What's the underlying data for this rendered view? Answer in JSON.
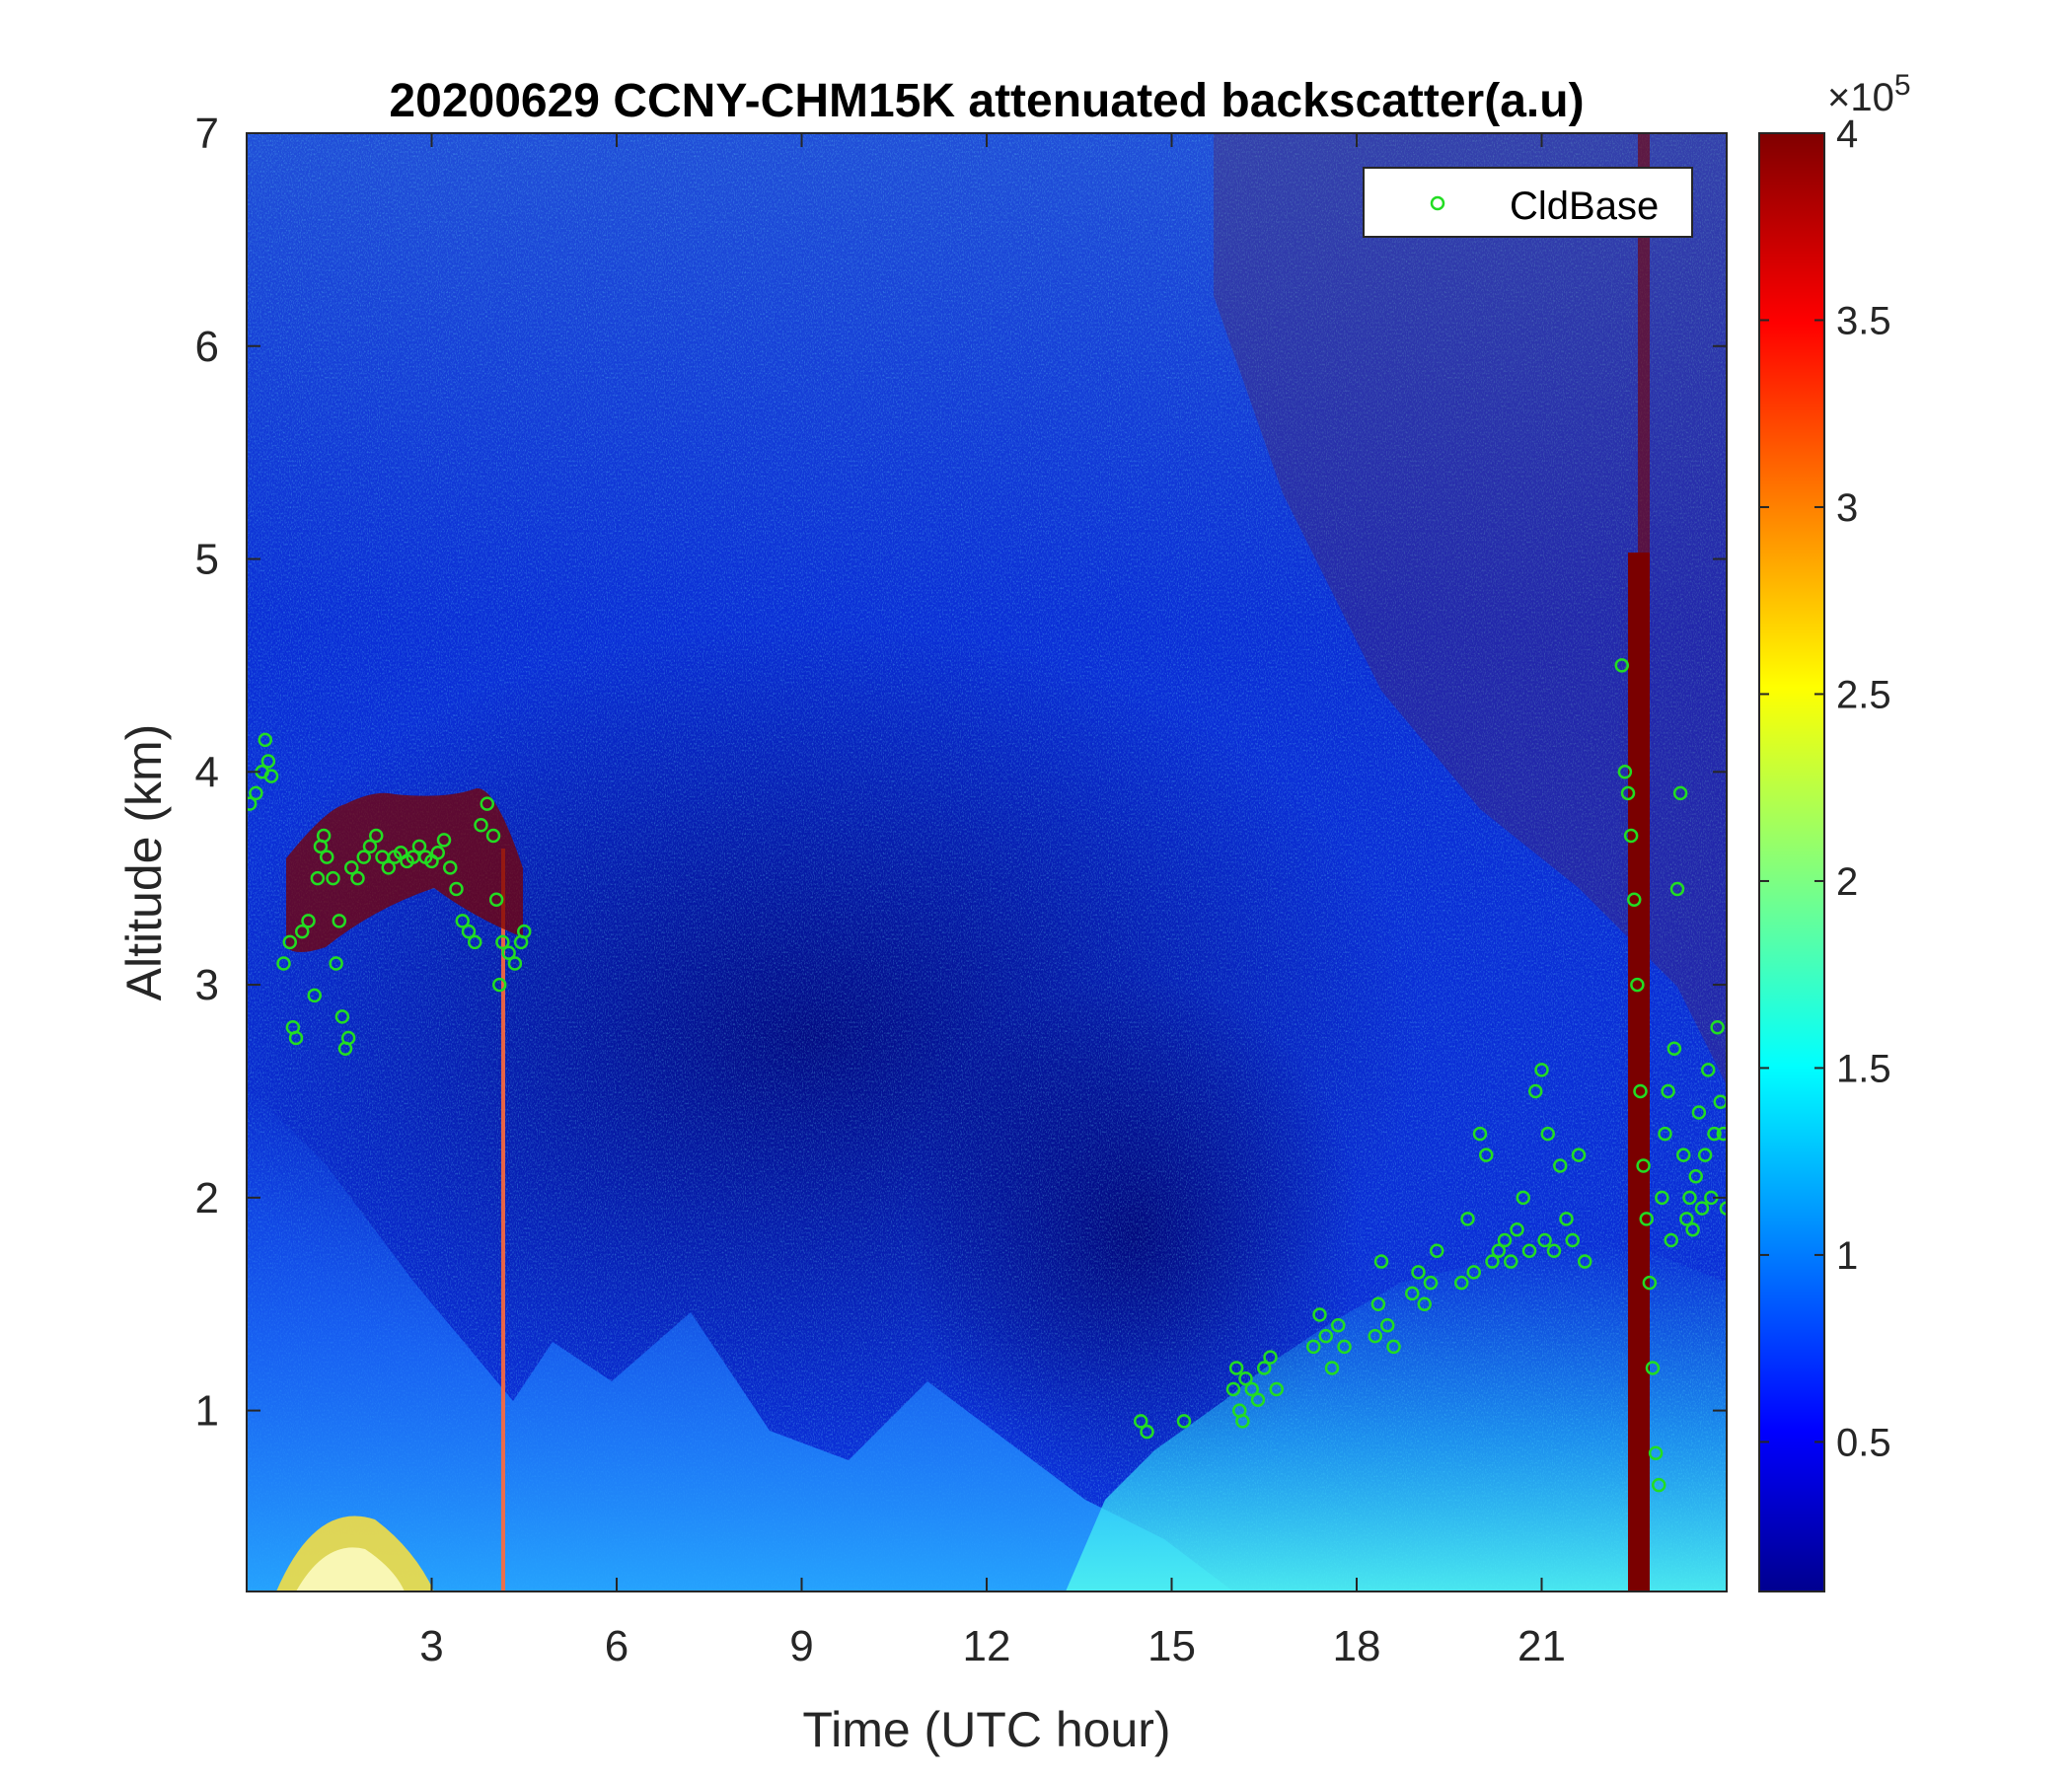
{
  "chart_data": {
    "type": "heatmap",
    "title": "20200629 CCNY-CHM15K attenuated backscatter(a.u)",
    "xlabel": "Time (UTC hour)",
    "ylabel": "Altitude (km)",
    "xlim": [
      0,
      24
    ],
    "ylim": [
      0.15,
      7
    ],
    "xticks": [
      3,
      6,
      9,
      12,
      15,
      18,
      21
    ],
    "yticks": [
      1,
      2,
      3,
      4,
      5,
      6,
      7
    ],
    "colorbar": {
      "min": 0.1,
      "max": 4,
      "ticks": [
        0.5,
        1,
        1.5,
        2,
        2.5,
        3,
        3.5,
        4
      ],
      "multiplier_label": "×10",
      "multiplier_exponent": "5",
      "colormap": "jet"
    },
    "legend": {
      "placement": "top-right",
      "entries": [
        "CldBase"
      ]
    },
    "grid": false,
    "series": [
      {
        "name": "CldBase",
        "marker": "circle",
        "color": "#22dd22",
        "points": [
          [
            0.05,
            3.85
          ],
          [
            0.15,
            3.9
          ],
          [
            0.25,
            4.0
          ],
          [
            0.3,
            4.15
          ],
          [
            0.35,
            4.05
          ],
          [
            0.4,
            3.98
          ],
          [
            0.6,
            3.1
          ],
          [
            0.7,
            3.2
          ],
          [
            0.75,
            2.8
          ],
          [
            0.8,
            2.75
          ],
          [
            0.9,
            3.25
          ],
          [
            1.0,
            3.3
          ],
          [
            1.1,
            2.95
          ],
          [
            1.15,
            3.5
          ],
          [
            1.2,
            3.65
          ],
          [
            1.25,
            3.7
          ],
          [
            1.3,
            3.6
          ],
          [
            1.4,
            3.5
          ],
          [
            1.45,
            3.1
          ],
          [
            1.5,
            3.3
          ],
          [
            1.55,
            2.85
          ],
          [
            1.6,
            2.7
          ],
          [
            1.65,
            2.75
          ],
          [
            1.7,
            3.55
          ],
          [
            1.8,
            3.5
          ],
          [
            1.9,
            3.6
          ],
          [
            2.0,
            3.65
          ],
          [
            2.1,
            3.7
          ],
          [
            2.2,
            3.6
          ],
          [
            2.3,
            3.55
          ],
          [
            2.4,
            3.6
          ],
          [
            2.5,
            3.62
          ],
          [
            2.6,
            3.58
          ],
          [
            2.7,
            3.6
          ],
          [
            2.8,
            3.65
          ],
          [
            2.9,
            3.6
          ],
          [
            3.0,
            3.58
          ],
          [
            3.1,
            3.62
          ],
          [
            3.2,
            3.68
          ],
          [
            3.3,
            3.55
          ],
          [
            3.4,
            3.45
          ],
          [
            3.5,
            3.3
          ],
          [
            3.6,
            3.25
          ],
          [
            3.7,
            3.2
          ],
          [
            3.8,
            3.75
          ],
          [
            3.9,
            3.85
          ],
          [
            4.0,
            3.7
          ],
          [
            4.05,
            3.4
          ],
          [
            4.1,
            3.0
          ],
          [
            4.15,
            3.2
          ],
          [
            4.25,
            3.15
          ],
          [
            4.35,
            3.1
          ],
          [
            4.45,
            3.2
          ],
          [
            4.5,
            3.25
          ],
          [
            14.5,
            0.95
          ],
          [
            14.6,
            0.9
          ],
          [
            15.2,
            0.95
          ],
          [
            16.0,
            1.1
          ],
          [
            16.05,
            1.2
          ],
          [
            16.1,
            1.0
          ],
          [
            16.15,
            0.95
          ],
          [
            16.2,
            1.15
          ],
          [
            16.3,
            1.1
          ],
          [
            16.4,
            1.05
          ],
          [
            16.5,
            1.2
          ],
          [
            16.6,
            1.25
          ],
          [
            16.7,
            1.1
          ],
          [
            17.3,
            1.3
          ],
          [
            17.4,
            1.45
          ],
          [
            17.5,
            1.35
          ],
          [
            17.6,
            1.2
          ],
          [
            17.7,
            1.4
          ],
          [
            17.8,
            1.3
          ],
          [
            18.3,
            1.35
          ],
          [
            18.35,
            1.5
          ],
          [
            18.4,
            1.7
          ],
          [
            18.5,
            1.4
          ],
          [
            18.6,
            1.3
          ],
          [
            18.9,
            1.55
          ],
          [
            19.0,
            1.65
          ],
          [
            19.1,
            1.5
          ],
          [
            19.2,
            1.6
          ],
          [
            19.3,
            1.75
          ],
          [
            19.7,
            1.6
          ],
          [
            19.8,
            1.9
          ],
          [
            19.9,
            1.65
          ],
          [
            20.0,
            2.3
          ],
          [
            20.1,
            2.2
          ],
          [
            20.2,
            1.7
          ],
          [
            20.3,
            1.75
          ],
          [
            20.4,
            1.8
          ],
          [
            20.5,
            1.7
          ],
          [
            20.6,
            1.85
          ],
          [
            20.7,
            2.0
          ],
          [
            20.8,
            1.75
          ],
          [
            20.9,
            2.5
          ],
          [
            21.0,
            2.6
          ],
          [
            21.05,
            1.8
          ],
          [
            21.1,
            2.3
          ],
          [
            21.2,
            1.75
          ],
          [
            21.3,
            2.15
          ],
          [
            21.4,
            1.9
          ],
          [
            21.5,
            1.8
          ],
          [
            21.6,
            2.2
          ],
          [
            21.7,
            1.7
          ],
          [
            22.3,
            4.5
          ],
          [
            22.35,
            4.0
          ],
          [
            22.4,
            3.9
          ],
          [
            22.45,
            3.7
          ],
          [
            22.5,
            3.4
          ],
          [
            22.55,
            3.0
          ],
          [
            22.6,
            2.5
          ],
          [
            22.65,
            2.15
          ],
          [
            22.7,
            1.9
          ],
          [
            22.75,
            1.6
          ],
          [
            22.8,
            1.2
          ],
          [
            22.85,
            0.8
          ],
          [
            22.9,
            0.65
          ],
          [
            22.95,
            2.0
          ],
          [
            23.0,
            2.3
          ],
          [
            23.05,
            2.5
          ],
          [
            23.1,
            1.8
          ],
          [
            23.15,
            2.7
          ],
          [
            23.2,
            3.45
          ],
          [
            23.25,
            3.9
          ],
          [
            23.3,
            2.2
          ],
          [
            23.35,
            1.9
          ],
          [
            23.4,
            2.0
          ],
          [
            23.45,
            1.85
          ],
          [
            23.5,
            2.1
          ],
          [
            23.55,
            2.4
          ],
          [
            23.6,
            1.95
          ],
          [
            23.65,
            2.2
          ],
          [
            23.7,
            2.6
          ],
          [
            23.75,
            2.0
          ],
          [
            23.8,
            2.3
          ],
          [
            23.85,
            2.8
          ],
          [
            23.9,
            2.45
          ],
          [
            23.95,
            2.3
          ],
          [
            24.0,
            1.95
          ]
        ]
      }
    ]
  }
}
